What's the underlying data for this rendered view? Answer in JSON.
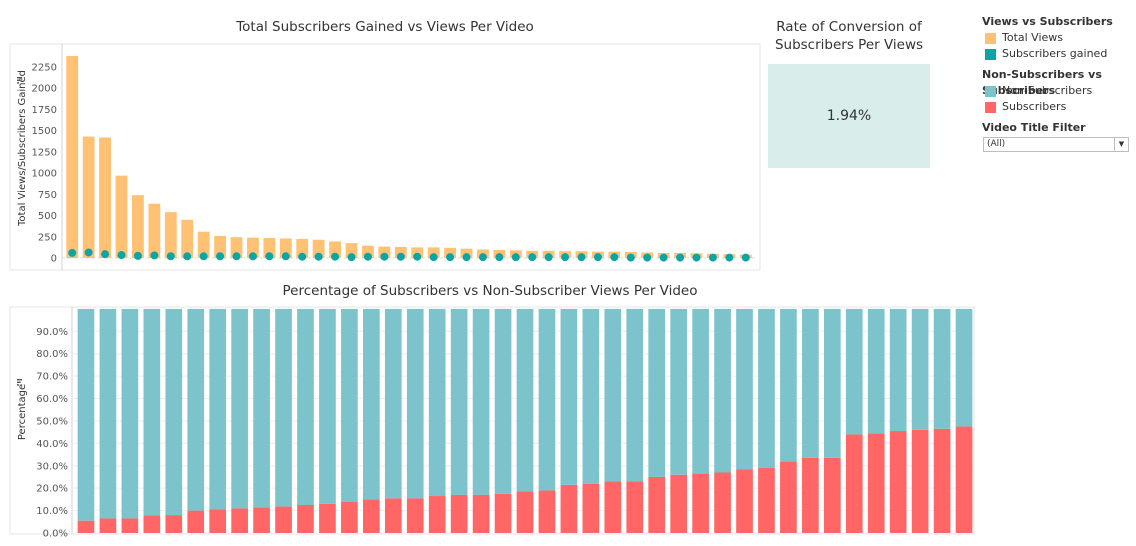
{
  "chart_data": [
    {
      "type": "bar",
      "title": "Total Subscribers Gained vs Views Per Video",
      "xlabel": "",
      "ylabel": "Total Views/Subscribers Gained",
      "ylim": [
        0,
        2450
      ],
      "yticks": [
        0,
        250,
        500,
        750,
        1000,
        1250,
        1500,
        1750,
        2000,
        2250
      ],
      "series": [
        {
          "name": "Total Views",
          "mark": "bar",
          "color": "#ffc174",
          "values": [
            2380,
            1430,
            1420,
            970,
            740,
            640,
            540,
            450,
            310,
            260,
            245,
            240,
            235,
            230,
            225,
            215,
            195,
            175,
            145,
            135,
            130,
            125,
            125,
            120,
            110,
            100,
            95,
            90,
            85,
            85,
            80,
            80,
            75,
            75,
            70,
            65,
            60,
            60,
            55,
            50,
            45,
            40
          ]
        },
        {
          "name": "Subscribers gained",
          "mark": "circle",
          "color": "#0ba5a5",
          "values": [
            60,
            65,
            45,
            35,
            25,
            30,
            20,
            20,
            20,
            20,
            20,
            20,
            20,
            20,
            15,
            15,
            15,
            10,
            15,
            15,
            15,
            15,
            10,
            10,
            10,
            10,
            10,
            10,
            10,
            10,
            10,
            10,
            10,
            10,
            5,
            5,
            5,
            5,
            5,
            5,
            5,
            5
          ]
        }
      ]
    },
    {
      "type": "bar",
      "stacked": true,
      "title": "Percentage of Subscribers vs Non-Subscriber Views Per Video",
      "xlabel": "",
      "ylabel": "Percentage",
      "ylim": [
        0,
        95.5
      ],
      "yticks": [
        "0.0%",
        "10.0%",
        "20.0%",
        "30.0%",
        "40.0%",
        "50.0%",
        "60.0%",
        "70.0%",
        "80.0%",
        "90.0%"
      ],
      "series": [
        {
          "name": "Subscribers",
          "color": "#ff6665",
          "values": [
            5.5,
            6.5,
            6.5,
            7.8,
            8.0,
            10.0,
            10.5,
            11.0,
            11.5,
            11.8,
            12.5,
            13.0,
            14.0,
            15.0,
            15.5,
            15.5,
            16.5,
            17.0,
            17.0,
            17.5,
            18.5,
            19.0,
            21.5,
            22.0,
            23.0,
            23.0,
            25.0,
            26.0,
            26.5,
            27.0,
            28.5,
            29.0,
            32.0,
            33.5,
            33.5,
            44.0,
            44.5,
            45.5,
            46.0,
            46.5,
            47.5
          ]
        },
        {
          "name": "Non-Subscribers",
          "color": "#7dc3cc",
          "values": [
            94.5,
            93.5,
            93.5,
            92.2,
            92.0,
            90.0,
            89.5,
            89.0,
            88.5,
            88.2,
            87.5,
            87.0,
            86.0,
            85.0,
            84.5,
            84.5,
            83.5,
            83.0,
            83.0,
            82.5,
            81.5,
            81.0,
            78.5,
            78.0,
            77.0,
            77.0,
            75.0,
            74.0,
            73.5,
            73.0,
            71.5,
            71.0,
            68.0,
            66.5,
            66.5,
            56.0,
            55.5,
            54.5,
            54.0,
            53.5,
            52.5
          ]
        }
      ]
    }
  ],
  "kpi": {
    "title_line1": "Rate of Conversion of",
    "title_line2": "Subscribers Per Views",
    "value": "1.94%",
    "color": "#d9eeea"
  },
  "legend": {
    "group1_title": "Views vs Subscribers",
    "group1_items": [
      {
        "label": "Total Views",
        "color": "#ffc174"
      },
      {
        "label": "Subscribers gained",
        "color": "#0ba5a5"
      }
    ],
    "group2_title": "Non-Subscribers vs Subscribers",
    "group2_items": [
      {
        "label": "Non-Subscribers",
        "color": "#7dc3cc"
      },
      {
        "label": "Subscribers",
        "color": "#ff6665"
      }
    ]
  },
  "filter": {
    "title": "Video Title Filter",
    "selected": "(All)"
  },
  "icons": {
    "sort_icon": "sort-icon"
  }
}
